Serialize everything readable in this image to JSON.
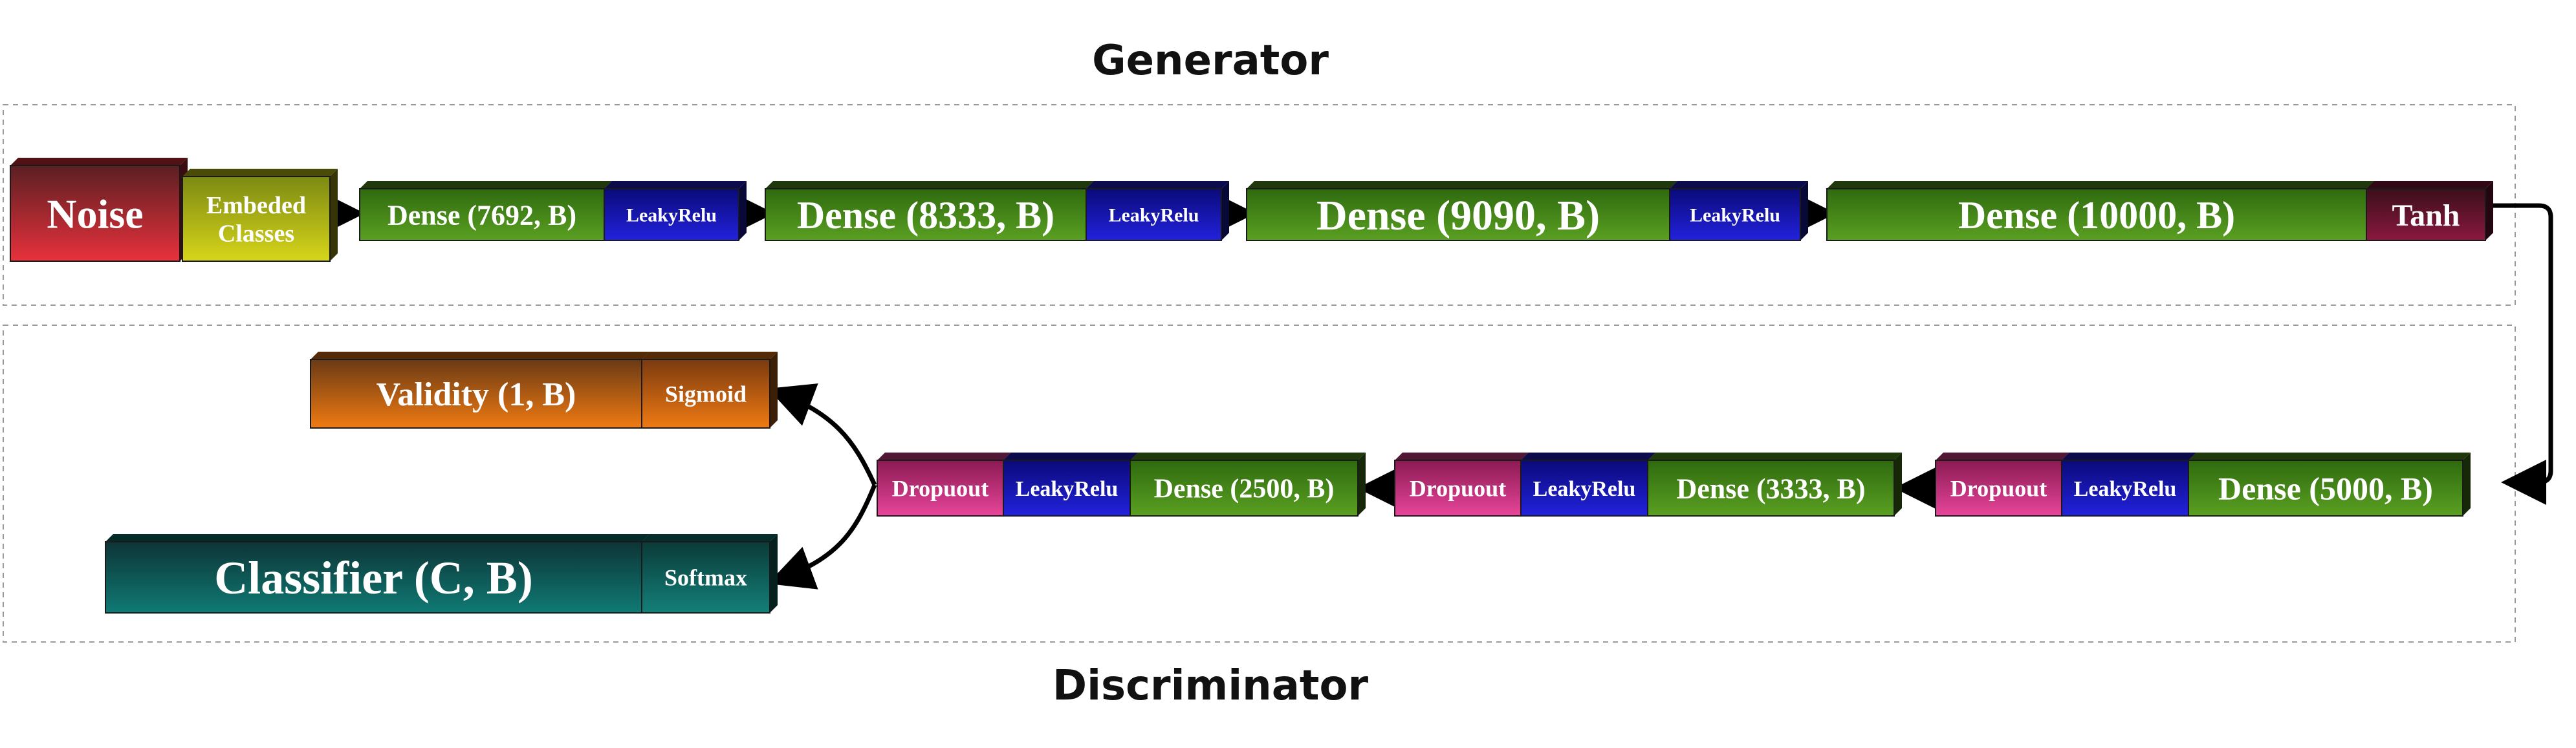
{
  "diagram": {
    "generator_title": "Generator",
    "discriminator_title": "Discriminator",
    "generator_row": [
      {
        "label": "Noise",
        "kind": "noise"
      },
      {
        "label": [
          "Embeded",
          "Classes"
        ],
        "kind": "embed"
      },
      {
        "label": "Dense (7692, B)",
        "kind": "dense"
      },
      {
        "label": "LeakyRelu",
        "kind": "leaky"
      },
      {
        "label": "Dense (8333, B)",
        "kind": "dense"
      },
      {
        "label": "LeakyRelu",
        "kind": "leaky"
      },
      {
        "label": "Dense (9090, B)",
        "kind": "dense"
      },
      {
        "label": "LeakyRelu",
        "kind": "leaky"
      },
      {
        "label": "Dense (10000, B)",
        "kind": "dense"
      },
      {
        "label": "Tanh",
        "kind": "tanh"
      }
    ],
    "discriminator_row": [
      {
        "label": "Dropuout",
        "kind": "dropout"
      },
      {
        "label": "LeakyRelu",
        "kind": "leaky"
      },
      {
        "label": "Dense (2500, B)",
        "kind": "dense"
      },
      {
        "label": "Dropuout",
        "kind": "dropout"
      },
      {
        "label": "LeakyRelu",
        "kind": "leaky"
      },
      {
        "label": "Dense (3333, B)",
        "kind": "dense"
      },
      {
        "label": "Dropuout",
        "kind": "dropout"
      },
      {
        "label": "LeakyRelu",
        "kind": "leaky"
      },
      {
        "label": "Dense (5000, B)",
        "kind": "dense"
      }
    ],
    "validity_head": [
      {
        "label": "Validity (1, B)",
        "kind": "validity"
      },
      {
        "label": "Sigmoid",
        "kind": "sigmoid"
      }
    ],
    "classifier_head": [
      {
        "label": "Classifier (C, B)",
        "kind": "classifier"
      },
      {
        "label": "Softmax",
        "kind": "softmax"
      }
    ],
    "colors": {
      "noise": [
        "#e8313c",
        "#5a1f22"
      ],
      "embed": [
        "#d7d51a",
        "#7c8a12"
      ],
      "dense": [
        "#5aa022",
        "#2f6a0f"
      ],
      "leaky": [
        "#2222dd",
        "#0a0a7a"
      ],
      "tanh": [
        "#8a1840",
        "#3a0f1a"
      ],
      "dropout": [
        "#e8459a",
        "#8a1a52"
      ],
      "validity": [
        "#f07a12",
        "#6a3a14"
      ],
      "sigmoid": [
        "#f07a12",
        "#7a3a10"
      ],
      "classifier": [
        "#0f7a74",
        "#0e3436"
      ],
      "softmax": [
        "#138078",
        "#0b3a38"
      ]
    }
  }
}
